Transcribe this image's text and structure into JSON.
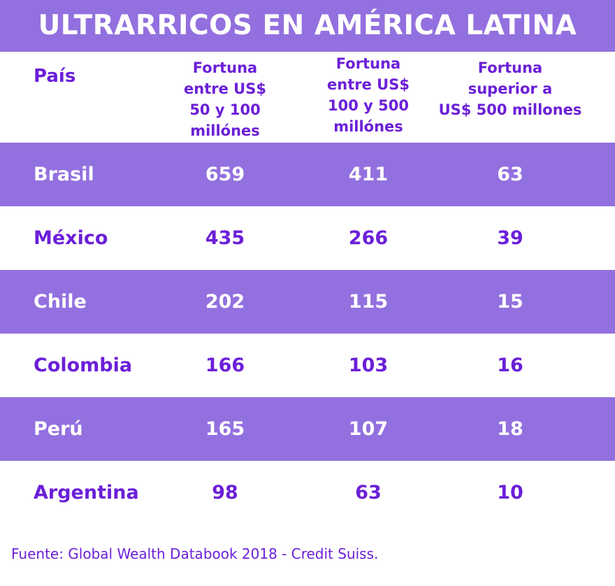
{
  "chart_data": {
    "type": "table",
    "title": "ULTRARRICOS EN AMÉRICA LATINA",
    "columns": [
      {
        "key": "pais",
        "lines": [
          "País"
        ]
      },
      {
        "key": "fortuna_50_100",
        "lines": [
          "Fortuna",
          "entre US$",
          "50 y 100",
          "millónes"
        ]
      },
      {
        "key": "fortuna_100_500",
        "lines": [
          "Fortuna",
          "entre US$",
          "100 y 500",
          "millónes"
        ]
      },
      {
        "key": "fortuna_500_plus",
        "lines": [
          "Fortuna",
          "superior a",
          "US$ 500 millones"
        ]
      }
    ],
    "rows": [
      {
        "country": "Brasil",
        "values": [
          659,
          411,
          63
        ]
      },
      {
        "country": "México",
        "values": [
          435,
          266,
          39
        ]
      },
      {
        "country": "Chile",
        "values": [
          202,
          115,
          15
        ]
      },
      {
        "country": "Colombia",
        "values": [
          166,
          103,
          16
        ]
      },
      {
        "country": "Perú",
        "values": [
          165,
          107,
          18
        ]
      },
      {
        "country": "Argentina",
        "values": [
          98,
          63,
          10
        ]
      }
    ],
    "source": "Fuente: Global Wealth Databook 2018 - Credit Suiss."
  },
  "colors": {
    "band": "#9370DF",
    "text_purple": "#6B1FD8",
    "text_on_band": "#ffffff",
    "background": "#ffffff"
  }
}
